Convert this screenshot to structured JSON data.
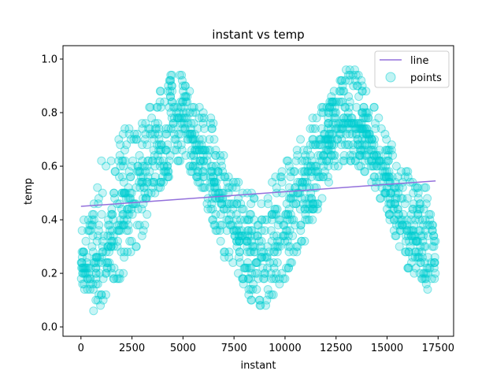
{
  "chart_data": {
    "type": "scatter",
    "title": "instant vs temp",
    "xlabel": "instant",
    "ylabel": "temp",
    "xlim": [
      -880,
      18260
    ],
    "ylim": [
      -0.035,
      1.05
    ],
    "xticks": [
      0,
      2500,
      5000,
      7500,
      10000,
      12500,
      15000,
      17500
    ],
    "yticks": [
      0.0,
      0.2,
      0.4,
      0.6,
      0.8,
      1.0
    ],
    "grid": false,
    "legend_position": "top-right",
    "legend": {
      "line_label": "line",
      "points_label": "points"
    },
    "colors": {
      "line": "#9370db",
      "points": "#00ced1"
    },
    "line": {
      "name": "line",
      "x": [
        0,
        17379
      ],
      "y": [
        0.45,
        0.545
      ]
    },
    "points": {
      "name": "points",
      "x_range": [
        0,
        17379
      ],
      "envelope": [
        {
          "x": 0,
          "lo": 0.18,
          "mid": 0.24,
          "hi": 0.46
        },
        {
          "x": 500,
          "lo": 0.02,
          "mid": 0.22,
          "hi": 0.4
        },
        {
          "x": 1000,
          "lo": 0.08,
          "mid": 0.26,
          "hi": 0.66
        },
        {
          "x": 1500,
          "lo": 0.12,
          "mid": 0.32,
          "hi": 0.62
        },
        {
          "x": 2000,
          "lo": 0.18,
          "mid": 0.4,
          "hi": 0.74
        },
        {
          "x": 2500,
          "lo": 0.28,
          "mid": 0.48,
          "hi": 0.76
        },
        {
          "x": 3000,
          "lo": 0.34,
          "mid": 0.56,
          "hi": 0.76
        },
        {
          "x": 3500,
          "lo": 0.46,
          "mid": 0.64,
          "hi": 0.86
        },
        {
          "x": 4000,
          "lo": 0.52,
          "mid": 0.7,
          "hi": 0.92
        },
        {
          "x": 4500,
          "lo": 0.58,
          "mid": 0.78,
          "hi": 0.94
        },
        {
          "x": 5000,
          "lo": 0.62,
          "mid": 0.76,
          "hi": 0.96
        },
        {
          "x": 5500,
          "lo": 0.56,
          "mid": 0.7,
          "hi": 0.86
        },
        {
          "x": 6000,
          "lo": 0.48,
          "mid": 0.64,
          "hi": 0.8
        },
        {
          "x": 6500,
          "lo": 0.38,
          "mid": 0.56,
          "hi": 0.76
        },
        {
          "x": 7000,
          "lo": 0.26,
          "mid": 0.44,
          "hi": 0.64
        },
        {
          "x": 7500,
          "lo": 0.22,
          "mid": 0.36,
          "hi": 0.56
        },
        {
          "x": 8000,
          "lo": 0.14,
          "mid": 0.32,
          "hi": 0.52
        },
        {
          "x": 8500,
          "lo": 0.08,
          "mid": 0.3,
          "hi": 0.5
        },
        {
          "x": 8750,
          "lo": 0.02,
          "mid": 0.28,
          "hi": 0.52
        },
        {
          "x": 9000,
          "lo": 0.08,
          "mid": 0.28,
          "hi": 0.5
        },
        {
          "x": 9500,
          "lo": 0.1,
          "mid": 0.3,
          "hi": 0.56
        },
        {
          "x": 10000,
          "lo": 0.18,
          "mid": 0.38,
          "hi": 0.62
        },
        {
          "x": 10500,
          "lo": 0.26,
          "mid": 0.48,
          "hi": 0.68
        },
        {
          "x": 11000,
          "lo": 0.3,
          "mid": 0.54,
          "hi": 0.72
        },
        {
          "x": 11500,
          "lo": 0.4,
          "mid": 0.58,
          "hi": 0.8
        },
        {
          "x": 12000,
          "lo": 0.5,
          "mid": 0.66,
          "hi": 0.84
        },
        {
          "x": 12500,
          "lo": 0.58,
          "mid": 0.74,
          "hi": 0.88
        },
        {
          "x": 13000,
          "lo": 0.62,
          "mid": 0.78,
          "hi": 0.98
        },
        {
          "x": 13500,
          "lo": 0.6,
          "mid": 0.76,
          "hi": 0.96
        },
        {
          "x": 14000,
          "lo": 0.56,
          "mid": 0.72,
          "hi": 0.88
        },
        {
          "x": 14500,
          "lo": 0.5,
          "mid": 0.64,
          "hi": 0.8
        },
        {
          "x": 15000,
          "lo": 0.4,
          "mid": 0.56,
          "hi": 0.74
        },
        {
          "x": 15500,
          "lo": 0.3,
          "mid": 0.44,
          "hi": 0.64
        },
        {
          "x": 16000,
          "lo": 0.22,
          "mid": 0.36,
          "hi": 0.58
        },
        {
          "x": 16500,
          "lo": 0.18,
          "mid": 0.32,
          "hi": 0.54
        },
        {
          "x": 17000,
          "lo": 0.14,
          "mid": 0.26,
          "hi": 0.52
        },
        {
          "x": 17379,
          "lo": 0.18,
          "mid": 0.24,
          "hi": 0.34
        }
      ]
    }
  }
}
